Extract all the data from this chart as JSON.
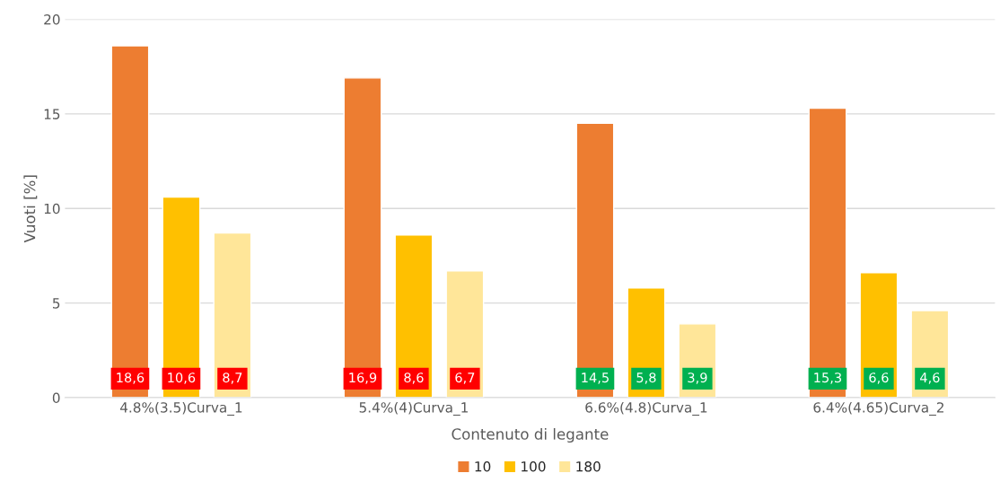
{
  "chart_data": {
    "type": "bar",
    "xlabel": "Contenuto di legante",
    "ylabel": "Vuoti [%]",
    "categories": [
      "4.8%(3.5)Curva_1",
      "5.4%(4)Curva_1",
      "6.6%(4.8)Curva_1",
      "6.4%(4.65)Curva_2"
    ],
    "series": [
      {
        "name": "10",
        "color": "#ed7d31",
        "values": [
          18.6,
          16.9,
          14.5,
          15.3
        ],
        "value_labels": [
          "18,6",
          "16,9",
          "14,5",
          "15,3"
        ]
      },
      {
        "name": "100",
        "color": "#ffc000",
        "values": [
          10.6,
          8.6,
          5.8,
          6.6
        ],
        "value_labels": [
          "10,6",
          "8,6",
          "5,8",
          "6,6"
        ]
      },
      {
        "name": "180",
        "color": "#ffe699",
        "values": [
          8.7,
          6.7,
          3.9,
          4.6
        ],
        "value_labels": [
          "8,7",
          "6,7",
          "3,9",
          "4,6"
        ]
      }
    ],
    "ylim": [
      0,
      20
    ],
    "yticks": [
      0,
      5,
      10,
      15,
      20
    ],
    "grid": "y",
    "legend": "bottom"
  }
}
